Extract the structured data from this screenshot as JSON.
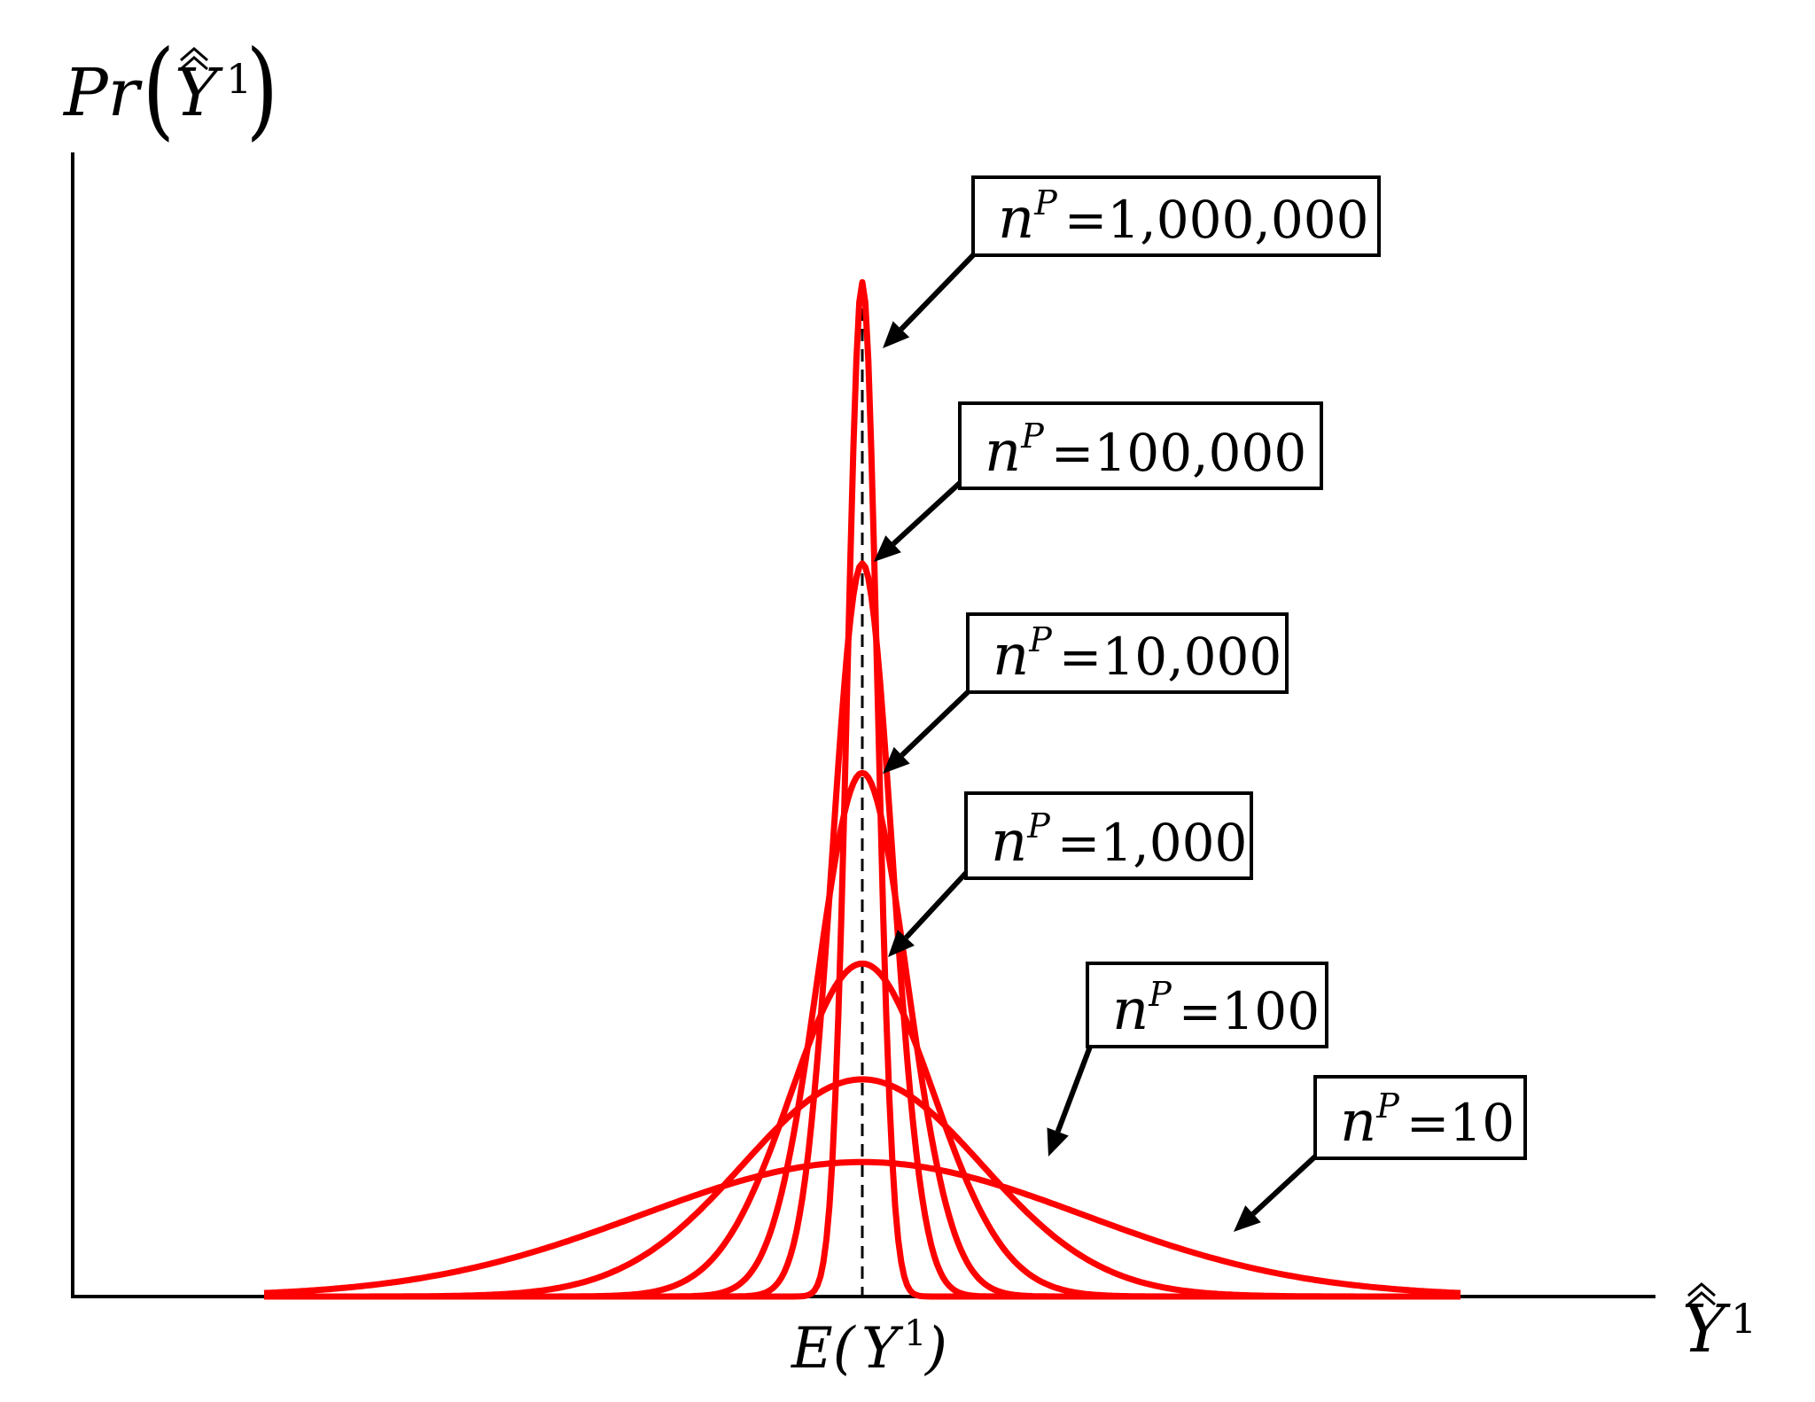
{
  "chart_data": {
    "type": "line",
    "title": "",
    "ylabel": {
      "base": "Pr",
      "var": "Y",
      "sup": "1"
    },
    "xlabel": {
      "var": "Y",
      "sup": "1"
    },
    "x_tick": {
      "prefix": "E(",
      "var": "Y",
      "sup": "1",
      "suffix": ")"
    },
    "x_center": 0,
    "xlim": [
      -1,
      1
    ],
    "ylim": [
      0,
      1.0
    ],
    "grid": false,
    "legend": "none",
    "line_color": "#ff0000",
    "center_line": "dashed",
    "series": [
      {
        "label_var": "n",
        "label_sup": "P",
        "label_value": "1,000,000",
        "peak": 0.92,
        "sigma": 0.025
      },
      {
        "label_var": "n",
        "label_sup": "P",
        "label_value": "100,000",
        "peak": 0.665,
        "sigma": 0.05
      },
      {
        "label_var": "n",
        "label_sup": "P",
        "label_value": "10,000",
        "peak": 0.475,
        "sigma": 0.075
      },
      {
        "label_var": "n",
        "label_sup": "P",
        "label_value": "1,000",
        "peak": 0.302,
        "sigma": 0.12
      },
      {
        "label_var": "n",
        "label_sup": "P",
        "label_value": "100",
        "peak": 0.197,
        "sigma": 0.2
      },
      {
        "label_var": "n",
        "label_sup": "P",
        "label_value": "10",
        "peak": 0.122,
        "sigma": 0.37
      }
    ]
  }
}
